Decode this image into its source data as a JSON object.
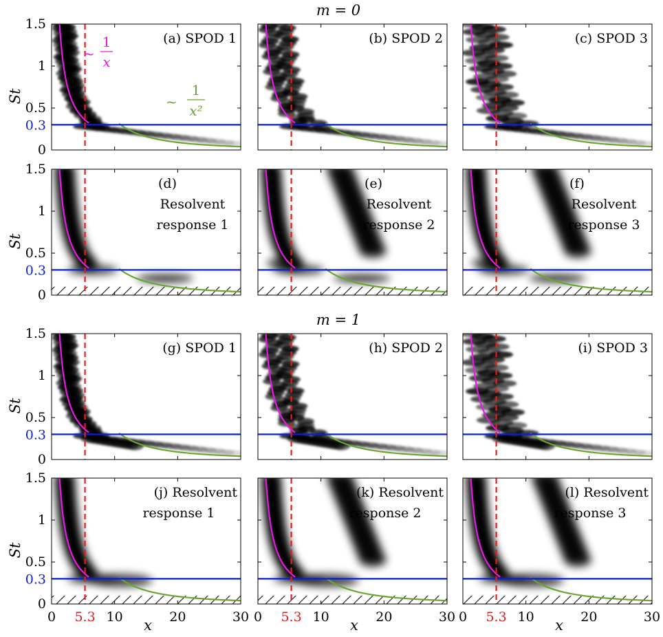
{
  "chart_data": {
    "type": "heatmap",
    "group_titles": [
      "m = 0",
      "m = 1"
    ],
    "xlabel": "x",
    "ylabel": "St",
    "xlim": [
      0,
      30
    ],
    "ylim": [
      0,
      1.5
    ],
    "xticks": [
      "0",
      "10",
      "20",
      "30"
    ],
    "yticks": [
      "0",
      "0.5",
      "1",
      "1.5"
    ],
    "special_ticks": {
      "x": {
        "value": 5.3,
        "label": "5.3",
        "color": "#e0201c"
      },
      "y": {
        "value": 0.3,
        "label": "0.3",
        "color": "#0a1fd6"
      }
    },
    "reference_curves": {
      "inverse": {
        "label_num": "1",
        "label_den": "x",
        "color": "#e619e6",
        "shape": "St = 1.9 / x",
        "x_range": [
          1,
          5.9
        ]
      },
      "inverse_square": {
        "label_num": "1",
        "label_den": "x²",
        "color": "#6aa530",
        "shape": "St = 36 / x^2",
        "x_range": [
          10.7,
          30
        ]
      }
    },
    "reference_lines": {
      "horizontal": {
        "value": 0.3,
        "color": "#0a1fd6",
        "style": "solid"
      },
      "vertical": {
        "value": 5.3,
        "color": "#e0201c",
        "style": "dashed"
      }
    },
    "hatched_region_st_max": 0.1,
    "panels": [
      {
        "label": "(a) SPOD 1",
        "group": "m = 0",
        "kind": "spod",
        "row": 0,
        "col": 0
      },
      {
        "label": "(b) SPOD 2",
        "group": "m = 0",
        "kind": "spod",
        "row": 0,
        "col": 1
      },
      {
        "label": "(c) SPOD 3",
        "group": "m = 0",
        "kind": "spod",
        "row": 0,
        "col": 2
      },
      {
        "label": "(d) Resolvent response 1",
        "label_lines": [
          "(d)",
          "Resolvent",
          "response 1"
        ],
        "group": "m = 0",
        "kind": "resolvent",
        "row": 1,
        "col": 0
      },
      {
        "label": "(e) Resolvent response 2",
        "label_lines": [
          "(e)",
          "Resolvent",
          "response 2"
        ],
        "group": "m = 0",
        "kind": "resolvent",
        "row": 1,
        "col": 1
      },
      {
        "label": "(f) Resolvent response 3",
        "label_lines": [
          "(f)",
          "Resolvent",
          "response 3"
        ],
        "group": "m = 0",
        "kind": "resolvent",
        "row": 1,
        "col": 2
      },
      {
        "label": "(g) SPOD 1",
        "group": "m = 1",
        "kind": "spod",
        "row": 2,
        "col": 0
      },
      {
        "label": "(h) SPOD 2",
        "group": "m = 1",
        "kind": "spod",
        "row": 2,
        "col": 1
      },
      {
        "label": "(i) SPOD 3",
        "group": "m = 1",
        "kind": "spod",
        "row": 2,
        "col": 2
      },
      {
        "label": "(j) Resolvent response 1",
        "label_lines": [
          "(j) Resolvent",
          "response 1"
        ],
        "group": "m = 1",
        "kind": "resolvent",
        "row": 3,
        "col": 0
      },
      {
        "label": "(k) Resolvent response 2",
        "label_lines": [
          "(k) Resolvent",
          "response 2"
        ],
        "group": "m = 1",
        "kind": "resolvent",
        "row": 3,
        "col": 1
      },
      {
        "label": "(l) Resolvent response 3",
        "label_lines": [
          "(l) Resolvent",
          "response 3"
        ],
        "group": "m = 1",
        "kind": "resolvent",
        "row": 3,
        "col": 2
      }
    ],
    "grid": false,
    "legend": "none"
  }
}
